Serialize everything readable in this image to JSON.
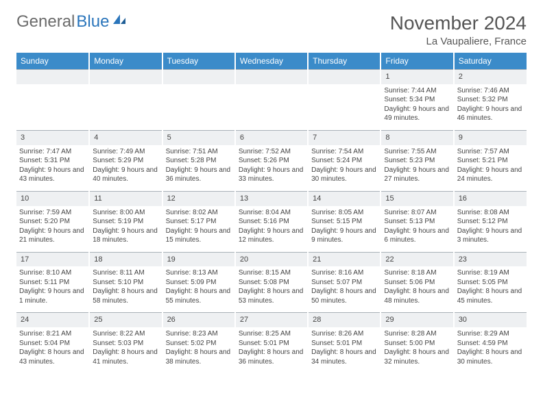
{
  "logo": {
    "text1": "General",
    "text2": "Blue"
  },
  "title": "November 2024",
  "location": "La Vaupaliere, France",
  "colors": {
    "header_bg": "#3b8bc9",
    "header_text": "#ffffff",
    "daynum_bg": "#eef0f2",
    "border": "#a8b0b7",
    "logo_gray": "#6b6b6b",
    "logo_blue": "#2a75bb"
  },
  "days": [
    "Sunday",
    "Monday",
    "Tuesday",
    "Wednesday",
    "Thursday",
    "Friday",
    "Saturday"
  ],
  "weeks": [
    [
      {
        "n": "",
        "sr": "",
        "ss": "",
        "dl": ""
      },
      {
        "n": "",
        "sr": "",
        "ss": "",
        "dl": ""
      },
      {
        "n": "",
        "sr": "",
        "ss": "",
        "dl": ""
      },
      {
        "n": "",
        "sr": "",
        "ss": "",
        "dl": ""
      },
      {
        "n": "",
        "sr": "",
        "ss": "",
        "dl": ""
      },
      {
        "n": "1",
        "sr": "Sunrise: 7:44 AM",
        "ss": "Sunset: 5:34 PM",
        "dl": "Daylight: 9 hours and 49 minutes."
      },
      {
        "n": "2",
        "sr": "Sunrise: 7:46 AM",
        "ss": "Sunset: 5:32 PM",
        "dl": "Daylight: 9 hours and 46 minutes."
      }
    ],
    [
      {
        "n": "3",
        "sr": "Sunrise: 7:47 AM",
        "ss": "Sunset: 5:31 PM",
        "dl": "Daylight: 9 hours and 43 minutes."
      },
      {
        "n": "4",
        "sr": "Sunrise: 7:49 AM",
        "ss": "Sunset: 5:29 PM",
        "dl": "Daylight: 9 hours and 40 minutes."
      },
      {
        "n": "5",
        "sr": "Sunrise: 7:51 AM",
        "ss": "Sunset: 5:28 PM",
        "dl": "Daylight: 9 hours and 36 minutes."
      },
      {
        "n": "6",
        "sr": "Sunrise: 7:52 AM",
        "ss": "Sunset: 5:26 PM",
        "dl": "Daylight: 9 hours and 33 minutes."
      },
      {
        "n": "7",
        "sr": "Sunrise: 7:54 AM",
        "ss": "Sunset: 5:24 PM",
        "dl": "Daylight: 9 hours and 30 minutes."
      },
      {
        "n": "8",
        "sr": "Sunrise: 7:55 AM",
        "ss": "Sunset: 5:23 PM",
        "dl": "Daylight: 9 hours and 27 minutes."
      },
      {
        "n": "9",
        "sr": "Sunrise: 7:57 AM",
        "ss": "Sunset: 5:21 PM",
        "dl": "Daylight: 9 hours and 24 minutes."
      }
    ],
    [
      {
        "n": "10",
        "sr": "Sunrise: 7:59 AM",
        "ss": "Sunset: 5:20 PM",
        "dl": "Daylight: 9 hours and 21 minutes."
      },
      {
        "n": "11",
        "sr": "Sunrise: 8:00 AM",
        "ss": "Sunset: 5:19 PM",
        "dl": "Daylight: 9 hours and 18 minutes."
      },
      {
        "n": "12",
        "sr": "Sunrise: 8:02 AM",
        "ss": "Sunset: 5:17 PM",
        "dl": "Daylight: 9 hours and 15 minutes."
      },
      {
        "n": "13",
        "sr": "Sunrise: 8:04 AM",
        "ss": "Sunset: 5:16 PM",
        "dl": "Daylight: 9 hours and 12 minutes."
      },
      {
        "n": "14",
        "sr": "Sunrise: 8:05 AM",
        "ss": "Sunset: 5:15 PM",
        "dl": "Daylight: 9 hours and 9 minutes."
      },
      {
        "n": "15",
        "sr": "Sunrise: 8:07 AM",
        "ss": "Sunset: 5:13 PM",
        "dl": "Daylight: 9 hours and 6 minutes."
      },
      {
        "n": "16",
        "sr": "Sunrise: 8:08 AM",
        "ss": "Sunset: 5:12 PM",
        "dl": "Daylight: 9 hours and 3 minutes."
      }
    ],
    [
      {
        "n": "17",
        "sr": "Sunrise: 8:10 AM",
        "ss": "Sunset: 5:11 PM",
        "dl": "Daylight: 9 hours and 1 minute."
      },
      {
        "n": "18",
        "sr": "Sunrise: 8:11 AM",
        "ss": "Sunset: 5:10 PM",
        "dl": "Daylight: 8 hours and 58 minutes."
      },
      {
        "n": "19",
        "sr": "Sunrise: 8:13 AM",
        "ss": "Sunset: 5:09 PM",
        "dl": "Daylight: 8 hours and 55 minutes."
      },
      {
        "n": "20",
        "sr": "Sunrise: 8:15 AM",
        "ss": "Sunset: 5:08 PM",
        "dl": "Daylight: 8 hours and 53 minutes."
      },
      {
        "n": "21",
        "sr": "Sunrise: 8:16 AM",
        "ss": "Sunset: 5:07 PM",
        "dl": "Daylight: 8 hours and 50 minutes."
      },
      {
        "n": "22",
        "sr": "Sunrise: 8:18 AM",
        "ss": "Sunset: 5:06 PM",
        "dl": "Daylight: 8 hours and 48 minutes."
      },
      {
        "n": "23",
        "sr": "Sunrise: 8:19 AM",
        "ss": "Sunset: 5:05 PM",
        "dl": "Daylight: 8 hours and 45 minutes."
      }
    ],
    [
      {
        "n": "24",
        "sr": "Sunrise: 8:21 AM",
        "ss": "Sunset: 5:04 PM",
        "dl": "Daylight: 8 hours and 43 minutes."
      },
      {
        "n": "25",
        "sr": "Sunrise: 8:22 AM",
        "ss": "Sunset: 5:03 PM",
        "dl": "Daylight: 8 hours and 41 minutes."
      },
      {
        "n": "26",
        "sr": "Sunrise: 8:23 AM",
        "ss": "Sunset: 5:02 PM",
        "dl": "Daylight: 8 hours and 38 minutes."
      },
      {
        "n": "27",
        "sr": "Sunrise: 8:25 AM",
        "ss": "Sunset: 5:01 PM",
        "dl": "Daylight: 8 hours and 36 minutes."
      },
      {
        "n": "28",
        "sr": "Sunrise: 8:26 AM",
        "ss": "Sunset: 5:01 PM",
        "dl": "Daylight: 8 hours and 34 minutes."
      },
      {
        "n": "29",
        "sr": "Sunrise: 8:28 AM",
        "ss": "Sunset: 5:00 PM",
        "dl": "Daylight: 8 hours and 32 minutes."
      },
      {
        "n": "30",
        "sr": "Sunrise: 8:29 AM",
        "ss": "Sunset: 4:59 PM",
        "dl": "Daylight: 8 hours and 30 minutes."
      }
    ]
  ]
}
